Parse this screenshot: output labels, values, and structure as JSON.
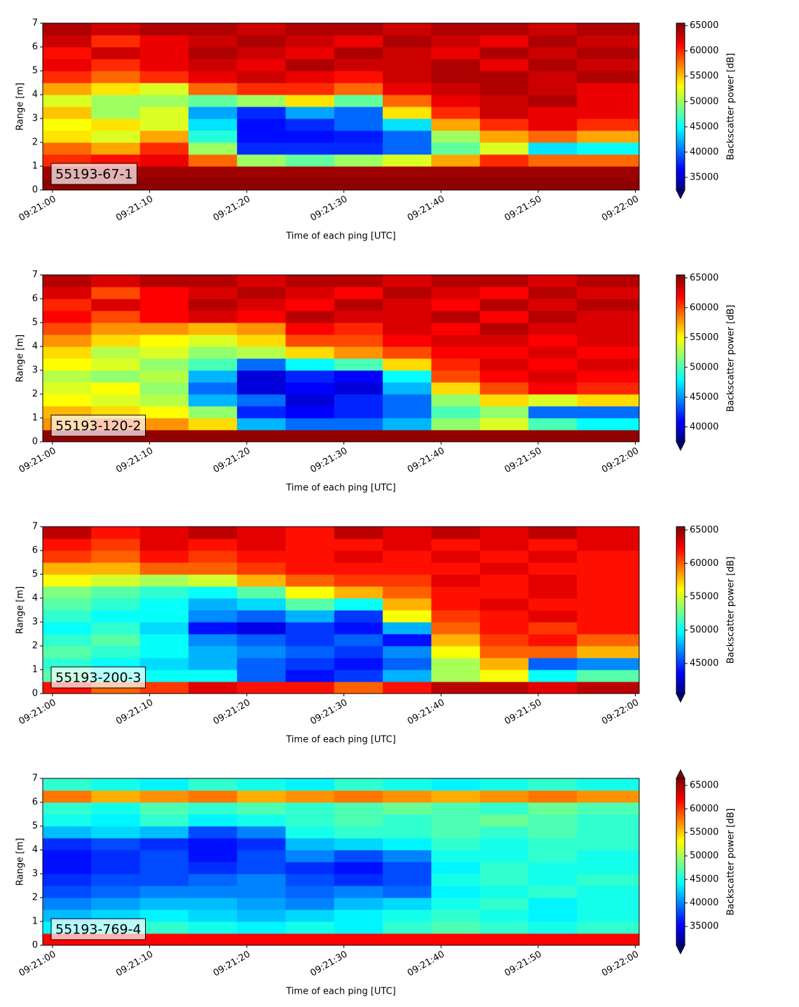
{
  "chart_data": [
    {
      "type": "heatmap",
      "label": "55193-67-1",
      "xlabel": "Time of each ping [UTC]",
      "ylabel": "Range [m]",
      "colorbar_label": "Backscatter power [dB]",
      "colormap": "jet",
      "extend": "min",
      "x": [
        "09:20:59",
        "09:21:04",
        "09:21:09",
        "09:21:14",
        "09:21:19",
        "09:21:24",
        "09:21:29",
        "09:21:34",
        "09:21:39",
        "09:21:44",
        "09:21:49",
        "09:21:54",
        "09:22:00.4"
      ],
      "y": [
        0,
        0.5,
        1,
        1.5,
        2,
        2.5,
        3,
        3.5,
        4,
        4.5,
        5,
        5.5,
        6,
        6.5,
        7
      ],
      "z": [
        [
          65000,
          65000,
          65000,
          65000,
          65000,
          65000,
          65000,
          65000,
          65000,
          65000,
          65000,
          65000
        ],
        [
          64500,
          64500,
          64500,
          64500,
          64500,
          64500,
          64500,
          64500,
          64500,
          64500,
          64500,
          64500
        ],
        [
          60000,
          61000,
          62000,
          58000,
          50000,
          48000,
          50000,
          52000,
          56000,
          60000,
          58000,
          58000
        ],
        [
          58000,
          56000,
          60000,
          50000,
          38000,
          38000,
          38000,
          40000,
          48000,
          52000,
          44000,
          45000
        ],
        [
          54000,
          52000,
          56000,
          46000,
          37000,
          37000,
          37500,
          40000,
          50000,
          56000,
          58000,
          56000
        ],
        [
          53000,
          54000,
          52000,
          44000,
          37000,
          38000,
          40000,
          44000,
          56000,
          60000,
          62000,
          60000
        ],
        [
          55000,
          50000,
          52000,
          42000,
          38000,
          42000,
          40000,
          54000,
          60000,
          63000,
          62000,
          62000
        ],
        [
          52000,
          50000,
          50000,
          48000,
          50000,
          54000,
          48000,
          58000,
          62000,
          63000,
          64000,
          62000
        ],
        [
          56000,
          54000,
          52000,
          58000,
          60000,
          60000,
          58000,
          62000,
          63000,
          64000,
          63000,
          62000
        ],
        [
          60000,
          58000,
          60000,
          62000,
          63000,
          62000,
          61000,
          63000,
          64000,
          64000,
          63000,
          64000
        ],
        [
          62000,
          60000,
          62000,
          63000,
          62000,
          64000,
          63000,
          63000,
          64000,
          62000,
          64000,
          63000
        ],
        [
          61000,
          63000,
          62000,
          64000,
          63000,
          62000,
          64000,
          63000,
          62000,
          64000,
          63000,
          64000
        ],
        [
          63000,
          60000,
          62000,
          63000,
          64000,
          63000,
          62000,
          64000,
          63000,
          62000,
          64000,
          63000
        ],
        [
          64000,
          63000,
          64000,
          64000,
          63000,
          64000,
          64000,
          63000,
          64000,
          64000,
          63000,
          64000
        ]
      ],
      "xlim": [
        "09:20:59",
        "09:22:00.4"
      ],
      "xticks": [
        "09:21:00",
        "09:21:10",
        "09:21:20",
        "09:21:30",
        "09:21:40",
        "09:21:50",
        "09:22:00"
      ],
      "ylim": [
        0,
        7
      ],
      "yticks": [
        0,
        1,
        2,
        3,
        4,
        5,
        6,
        7
      ],
      "clim": [
        32500,
        65500
      ],
      "cticks": [
        35000,
        40000,
        45000,
        50000,
        55000,
        60000,
        65000
      ]
    },
    {
      "type": "heatmap",
      "label": "55193-120-2",
      "xlabel": "Time of each ping [UTC]",
      "ylabel": "Range [m]",
      "colorbar_label": "Backscatter power [dB]",
      "colormap": "jet",
      "extend": "min",
      "x": [
        "09:20:59",
        "09:21:04",
        "09:21:09",
        "09:21:14",
        "09:21:19",
        "09:21:24",
        "09:21:29",
        "09:21:34",
        "09:21:39",
        "09:21:44",
        "09:21:49",
        "09:21:54",
        "09:22:00.4"
      ],
      "y": [
        0,
        0.5,
        1,
        1.5,
        2,
        2.5,
        3,
        3.5,
        4,
        4.5,
        5,
        5.5,
        6,
        6.5,
        7
      ],
      "z": [
        [
          65000,
          65000,
          65000,
          65000,
          65000,
          65000,
          65000,
          65000,
          65000,
          65000,
          65000,
          65000
        ],
        [
          58000,
          60000,
          58000,
          56000,
          46000,
          44000,
          44000,
          46000,
          52000,
          54000,
          50000,
          48000
        ],
        [
          57000,
          56000,
          55000,
          52000,
          42000,
          41000,
          42000,
          44000,
          50000,
          52000,
          44000,
          44000
        ],
        [
          55000,
          54000,
          53000,
          46000,
          44000,
          40000,
          42000,
          44000,
          52000,
          56000,
          54000,
          56000
        ],
        [
          54000,
          55000,
          52000,
          44000,
          40000,
          41000,
          40000,
          46000,
          56000,
          60000,
          62000,
          61000
        ],
        [
          53000,
          52000,
          53000,
          46000,
          40000,
          42000,
          41000,
          48000,
          60000,
          62000,
          63000,
          62000
        ],
        [
          55000,
          54000,
          52000,
          50000,
          44000,
          48000,
          50000,
          56000,
          61000,
          63000,
          62000,
          63000
        ],
        [
          56000,
          53000,
          54000,
          52000,
          53000,
          56000,
          58000,
          60000,
          62000,
          62000,
          63000,
          62000
        ],
        [
          58000,
          56000,
          55000,
          54000,
          56000,
          60000,
          60000,
          62000,
          63000,
          63000,
          62000,
          63000
        ],
        [
          60000,
          58000,
          58000,
          57000,
          58000,
          62000,
          61000,
          63000,
          62000,
          64000,
          63000,
          63000
        ],
        [
          62000,
          60000,
          62000,
          63000,
          62000,
          64000,
          63000,
          63000,
          64000,
          62000,
          64000,
          63000
        ],
        [
          61000,
          63000,
          62000,
          64000,
          63000,
          62000,
          64000,
          63000,
          62000,
          64000,
          63000,
          64000
        ],
        [
          63000,
          60000,
          62000,
          63000,
          64000,
          63000,
          62000,
          64000,
          63000,
          62000,
          64000,
          63000
        ],
        [
          64000,
          63000,
          64000,
          64000,
          63000,
          64000,
          64000,
          63000,
          64000,
          64000,
          63000,
          64000
        ]
      ],
      "xlim": [
        "09:20:59",
        "09:22:00.4"
      ],
      "xticks": [
        "09:21:00",
        "09:21:10",
        "09:21:20",
        "09:21:30",
        "09:21:40",
        "09:21:50",
        "09:22:00"
      ],
      "ylim": [
        0,
        7
      ],
      "yticks": [
        0,
        1,
        2,
        3,
        4,
        5,
        6,
        7
      ],
      "clim": [
        37500,
        65500
      ],
      "cticks": [
        40000,
        45000,
        50000,
        55000,
        60000,
        65000
      ]
    },
    {
      "type": "heatmap",
      "label": "55193-200-3",
      "xlabel": "Time of each ping [UTC]",
      "ylabel": "Range [m]",
      "colorbar_label": "Backscatter power [dB]",
      "colormap": "jet",
      "extend": "min",
      "x": [
        "09:20:59",
        "09:21:04",
        "09:21:09",
        "09:21:14",
        "09:21:19",
        "09:21:24",
        "09:21:29",
        "09:21:34",
        "09:21:39",
        "09:21:44",
        "09:21:49",
        "09:21:54",
        "09:22:00.4"
      ],
      "y": [
        0,
        0.5,
        1,
        1.5,
        2,
        2.5,
        3,
        3.5,
        4,
        4.5,
        5,
        5.5,
        6,
        6.5,
        7
      ],
      "z": [
        [
          62000,
          60000,
          61000,
          63000,
          62000,
          62000,
          60000,
          62000,
          64000,
          64000,
          63000,
          64000
        ],
        [
          52000,
          50000,
          50000,
          50000,
          46000,
          44000,
          45000,
          48000,
          54000,
          56000,
          50000,
          52000
        ],
        [
          51000,
          50000,
          49000,
          48000,
          46000,
          45000,
          44000,
          46000,
          54000,
          58000,
          46000,
          47000
        ],
        [
          52000,
          51000,
          50000,
          48000,
          47000,
          46000,
          45000,
          47000,
          56000,
          60000,
          60000,
          58000
        ],
        [
          51000,
          52000,
          50000,
          47000,
          46000,
          45000,
          46000,
          44000,
          58000,
          61000,
          62000,
          60000
        ],
        [
          50000,
          51000,
          49000,
          44000,
          43000,
          45000,
          44000,
          48000,
          60000,
          62000,
          61000,
          62000
        ],
        [
          51000,
          50000,
          50000,
          47000,
          46000,
          48000,
          45000,
          56000,
          61000,
          62000,
          63000,
          62000
        ],
        [
          52000,
          51000,
          50000,
          48000,
          49000,
          52000,
          50000,
          58000,
          62000,
          63000,
          62000,
          62000
        ],
        [
          53000,
          52000,
          51000,
          50000,
          52000,
          56000,
          58000,
          60000,
          62000,
          62000,
          63000,
          62000
        ],
        [
          56000,
          55000,
          54000,
          55000,
          58000,
          60000,
          61000,
          61000,
          63000,
          62000,
          63000,
          62000
        ],
        [
          58000,
          58000,
          60000,
          60000,
          61000,
          62000,
          62000,
          62000,
          62000,
          63000,
          62000,
          62000
        ],
        [
          61000,
          60000,
          62000,
          61000,
          62000,
          62000,
          63000,
          62000,
          63000,
          62000,
          63000,
          62000
        ],
        [
          62000,
          61000,
          63000,
          62000,
          63000,
          62000,
          62000,
          63000,
          62000,
          63000,
          62000,
          63000
        ],
        [
          64000,
          62000,
          63000,
          64000,
          63000,
          62000,
          64000,
          63000,
          64000,
          63000,
          64000,
          63000
        ]
      ],
      "xlim": [
        "09:20:59",
        "09:22:00.4"
      ],
      "xticks": [
        "09:21:00",
        "09:21:10",
        "09:21:20",
        "09:21:30",
        "09:21:40",
        "09:21:50",
        "09:22:00"
      ],
      "ylim": [
        0,
        7
      ],
      "yticks": [
        0,
        1,
        2,
        3,
        4,
        5,
        6,
        7
      ],
      "clim": [
        40500,
        65500
      ],
      "cticks": [
        45000,
        50000,
        55000,
        60000,
        65000
      ]
    },
    {
      "type": "heatmap",
      "label": "55193-769-4",
      "xlabel": "Time of each ping [UTC]",
      "ylabel": "Range [m]",
      "colorbar_label": "Backscatter power [dB]",
      "colormap": "jet",
      "extend": "both",
      "x": [
        "09:20:59",
        "09:21:04",
        "09:21:09",
        "09:21:14",
        "09:21:19",
        "09:21:24",
        "09:21:29",
        "09:21:34",
        "09:21:39",
        "09:21:44",
        "09:21:49",
        "09:21:54",
        "09:22:00.4"
      ],
      "y": [
        0,
        0.5,
        1,
        1.5,
        2,
        2.5,
        3,
        3.5,
        4,
        4.5,
        5,
        5.5,
        6,
        6.5,
        7
      ],
      "z": [
        [
          62000,
          62000,
          62000,
          62000,
          62000,
          62000,
          62000,
          62000,
          62000,
          62000,
          62000,
          62000
        ],
        [
          44000,
          45000,
          46000,
          45000,
          44000,
          45000,
          44000,
          46000,
          47000,
          46000,
          45000,
          46000
        ],
        [
          42000,
          43000,
          44000,
          43000,
          42000,
          43000,
          44000,
          45000,
          46000,
          45000,
          44000,
          45000
        ],
        [
          40000,
          41000,
          42000,
          42000,
          41000,
          40000,
          42000,
          43000,
          45000,
          46000,
          44000,
          45000
        ],
        [
          38000,
          39000,
          40000,
          40000,
          40000,
          39000,
          40000,
          39000,
          44000,
          45000,
          46000,
          45000
        ],
        [
          37000,
          38000,
          38000,
          39000,
          40000,
          38000,
          37000,
          38000,
          45000,
          46000,
          45000,
          46000
        ],
        [
          36000,
          37000,
          38000,
          37000,
          38000,
          37000,
          36000,
          38000,
          44000,
          46000,
          45000,
          45000
        ],
        [
          36000,
          37000,
          38000,
          36000,
          38000,
          40000,
          38000,
          40000,
          45000,
          45000,
          46000,
          45000
        ],
        [
          37000,
          38000,
          37000,
          36000,
          37000,
          42000,
          43000,
          44000,
          46000,
          45000,
          46000,
          46000
        ],
        [
          42000,
          43000,
          42000,
          38000,
          40000,
          45000,
          46000,
          46000,
          47000,
          46000,
          47000,
          46000
        ],
        [
          45000,
          44000,
          46000,
          44000,
          45000,
          46000,
          47000,
          46000,
          47000,
          48000,
          47000,
          46000
        ],
        [
          46000,
          45000,
          47000,
          46000,
          47000,
          46000,
          47000,
          48000,
          47000,
          46000,
          48000,
          47000
        ],
        [
          58000,
          56000,
          57000,
          58000,
          56000,
          57000,
          58000,
          57000,
          56000,
          57000,
          58000,
          57000
        ],
        [
          46000,
          45000,
          44000,
          46000,
          45000,
          44000,
          46000,
          45000,
          44000,
          45000,
          46000,
          45000
        ]
      ],
      "xlim": [
        "09:20:59",
        "09:22:00.4"
      ],
      "xticks": [
        "09:21:00",
        "09:21:10",
        "09:21:20",
        "09:21:30",
        "09:21:40",
        "09:21:50",
        "09:22:00"
      ],
      "ylim": [
        0,
        7
      ],
      "yticks": [
        0,
        1,
        2,
        3,
        4,
        5,
        6,
        7
      ],
      "clim": [
        31000,
        66500
      ],
      "cticks": [
        35000,
        40000,
        45000,
        50000,
        55000,
        60000,
        65000
      ]
    }
  ]
}
